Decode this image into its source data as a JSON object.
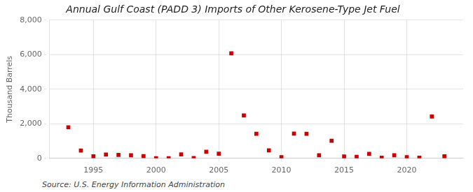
{
  "chart_data": {
    "type": "scatter",
    "title": "Annual Gulf Coast (PADD 3) Imports of Other Kerosene-Type Jet Fuel",
    "ylabel": "Thousand Barrels",
    "annotations": [
      "Source: U.S. Energy Information Administration"
    ],
    "x": [
      1993,
      1994,
      1995,
      1996,
      1997,
      1998,
      1999,
      2000,
      2001,
      2002,
      2003,
      2004,
      2005,
      2006,
      2007,
      2008,
      2009,
      2010,
      2011,
      2012,
      2013,
      2014,
      2015,
      2016,
      2017,
      2018,
      2019,
      2020,
      2021,
      2022,
      2023
    ],
    "values": [
      1800,
      450,
      120,
      220,
      200,
      180,
      130,
      10,
      10,
      230,
      20,
      380,
      270,
      6080,
      2480,
      1420,
      460,
      70,
      1430,
      1420,
      180,
      1020,
      110,
      90,
      260,
      40,
      180,
      70,
      40,
      2420,
      120
    ],
    "color": "#cc0000",
    "marker": "square",
    "xlim": [
      1991.5,
      2024.5
    ],
    "xticks": [
      1995,
      2000,
      2005,
      2010,
      2015,
      2020
    ],
    "ylim": [
      0,
      8000
    ],
    "yticks": [
      0,
      {
        "value": 2000,
        "label": "2,000"
      },
      {
        "value": 4000,
        "label": "4,000"
      },
      {
        "value": 6000,
        "label": "6,000"
      },
      {
        "value": 8000,
        "label": "8,000"
      }
    ],
    "grid": true
  }
}
